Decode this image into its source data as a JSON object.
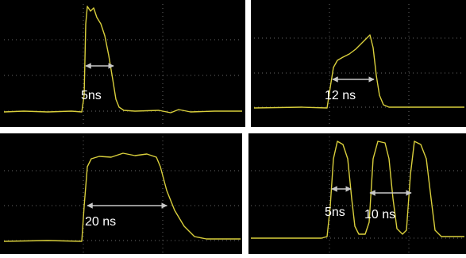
{
  "panels": [
    {
      "labels": [
        "5ns"
      ]
    },
    {
      "labels": [
        "12 ns"
      ]
    },
    {
      "labels": [
        "20 ns"
      ]
    },
    {
      "labels": [
        "5ns",
        "10 ns"
      ]
    }
  ]
}
